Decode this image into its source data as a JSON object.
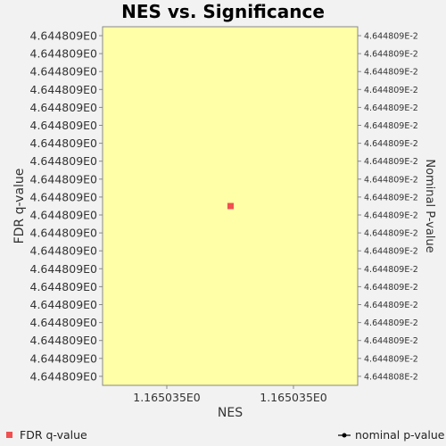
{
  "chart_data": {
    "type": "scatter",
    "title": "NES vs. Significance",
    "xlabel": "NES",
    "ylabel": "FDR q-value",
    "y2label": "Nominal P-value",
    "x_tick_labels": [
      "1.165035E0",
      "1.165035E0"
    ],
    "y_tick_labels": [
      "4.644809E0",
      "4.644809E0",
      "4.644809E0",
      "4.644809E0",
      "4.644809E0",
      "4.644809E0",
      "4.644809E0",
      "4.644809E0",
      "4.644809E0",
      "4.644809E0",
      "4.644809E0",
      "4.644809E0",
      "4.644809E0",
      "4.644809E0",
      "4.644809E0",
      "4.644809E0",
      "4.644809E0",
      "4.644809E0",
      "4.644809E0",
      "4.644809E0"
    ],
    "y2_tick_labels": [
      "4.644809E-2",
      "4.644809E-2",
      "4.644809E-2",
      "4.644809E-2",
      "4.644809E-2",
      "4.644809E-2",
      "4.644809E-2",
      "4.644809E-2",
      "4.644809E-2",
      "4.644809E-2",
      "4.644809E-2",
      "4.644809E-2",
      "4.644809E-2",
      "4.644809E-2",
      "4.644809E-2",
      "4.644809E-2",
      "4.644809E-2",
      "4.644809E-2",
      "4.644809E-2",
      "4.644808E-2"
    ],
    "series": [
      {
        "name": "FDR q-value",
        "color": "#f05050",
        "marker": "square",
        "points": [
          {
            "x": 1.165035,
            "y": 4.644809
          }
        ]
      },
      {
        "name": "nominal p-value",
        "color": "#000000",
        "marker": "line-dot",
        "points": []
      }
    ],
    "grid": false,
    "legend": "bottom",
    "plot_background": "#ffffa8"
  }
}
